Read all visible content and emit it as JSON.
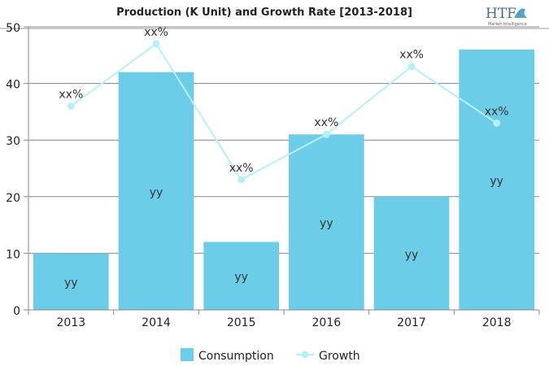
{
  "chart_data": {
    "type": "bar",
    "title": "Production (K Unit) and Growth Rate [2013-2018]",
    "categories": [
      "2013",
      "2014",
      "2015",
      "2016",
      "2017",
      "2018"
    ],
    "ylim": [
      0,
      50
    ],
    "yticks": [
      0,
      10,
      20,
      30,
      40,
      50
    ],
    "grid": true,
    "legend": "bottom",
    "series": [
      {
        "name": "Consumption",
        "type": "bar",
        "color": "#6ccde8",
        "values": [
          10,
          42,
          12,
          31,
          20,
          46
        ],
        "labels": [
          "yy",
          "yy",
          "yy",
          "yy",
          "yy",
          "yy"
        ]
      },
      {
        "name": "Growth",
        "type": "line",
        "color": "#b5f1f6",
        "values": [
          36,
          47,
          23,
          31,
          43,
          33
        ],
        "labels": [
          "xx%",
          "xx%",
          "xx%",
          "xx%",
          "xx%",
          "xx%"
        ]
      }
    ]
  },
  "logo": {
    "text": "HTF",
    "subtext": "Market Intelligence"
  }
}
